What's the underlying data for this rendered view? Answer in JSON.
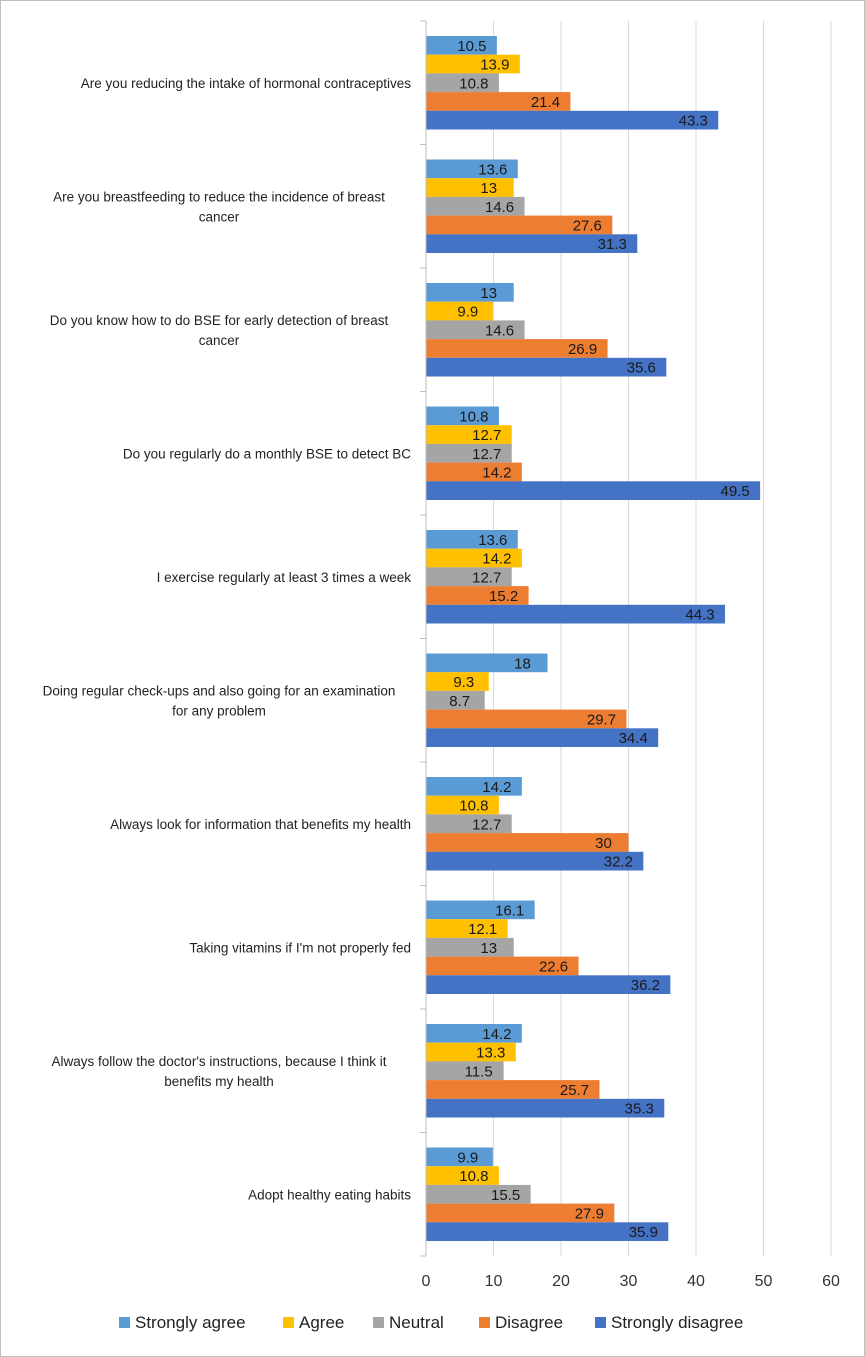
{
  "chart_data": {
    "type": "bar",
    "orientation": "horizontal",
    "title": "",
    "xlabel": "",
    "ylabel": "",
    "xlim": [
      0,
      60
    ],
    "x_ticks": [
      0,
      10,
      20,
      30,
      40,
      50,
      60
    ],
    "grid": true,
    "legend_position": "bottom",
    "categories": [
      "Are you reducing the intake of hormonal contraceptives",
      "Are you breastfeeding to reduce the incidence of breast cancer",
      "Do you know how to do BSE for early detection of breast cancer",
      "Do you regularly do a monthly BSE to detect BC",
      "I exercise regularly at least 3 times a week",
      "Doing regular check-ups and also going for an examination for any problem",
      "Always look for information that benefits my health",
      "Taking vitamins if I'm not properly fed",
      "Always follow the doctor's instructions, because I think it benefits my health",
      "Adopt healthy eating habits"
    ],
    "category_lines": [
      [
        "Are you reducing the intake of hormonal contraceptives"
      ],
      [
        "Are you breastfeeding to reduce the incidence of breast",
        "cancer"
      ],
      [
        "Do you know how to do BSE for early detection of breast",
        "cancer"
      ],
      [
        "Do you regularly do a monthly BSE to detect BC"
      ],
      [
        "I exercise regularly at least 3 times a week"
      ],
      [
        "Doing regular check-ups and also going for an examination",
        "for any problem"
      ],
      [
        "Always look for information that benefits my health"
      ],
      [
        "Taking vitamins if I'm not properly fed"
      ],
      [
        "Always follow the doctor's instructions, because I think it",
        "benefits my health"
      ],
      [
        "Adopt healthy eating habits"
      ]
    ],
    "series": [
      {
        "name": "Strongly agree",
        "color": "#5B9BD5",
        "values": [
          10.5,
          13.6,
          13,
          10.8,
          13.6,
          18,
          14.2,
          16.1,
          14.2,
          9.9
        ]
      },
      {
        "name": "Agree",
        "color": "#FFC000",
        "values": [
          13.9,
          13,
          9.9,
          12.7,
          14.2,
          9.3,
          10.8,
          12.1,
          13.3,
          10.8
        ]
      },
      {
        "name": "Neutral",
        "color": "#A5A5A5",
        "values": [
          10.8,
          14.6,
          14.6,
          12.7,
          12.7,
          8.7,
          12.7,
          13,
          11.5,
          15.5
        ]
      },
      {
        "name": "Disagree",
        "color": "#ED7D31",
        "values": [
          21.4,
          27.6,
          26.9,
          14.2,
          15.2,
          29.7,
          30,
          22.6,
          25.7,
          27.9
        ]
      },
      {
        "name": "Strongly disagree",
        "color": "#4472C4",
        "values": [
          43.3,
          31.3,
          35.6,
          49.5,
          44.3,
          34.4,
          32.2,
          36.2,
          35.3,
          35.9
        ]
      }
    ]
  }
}
